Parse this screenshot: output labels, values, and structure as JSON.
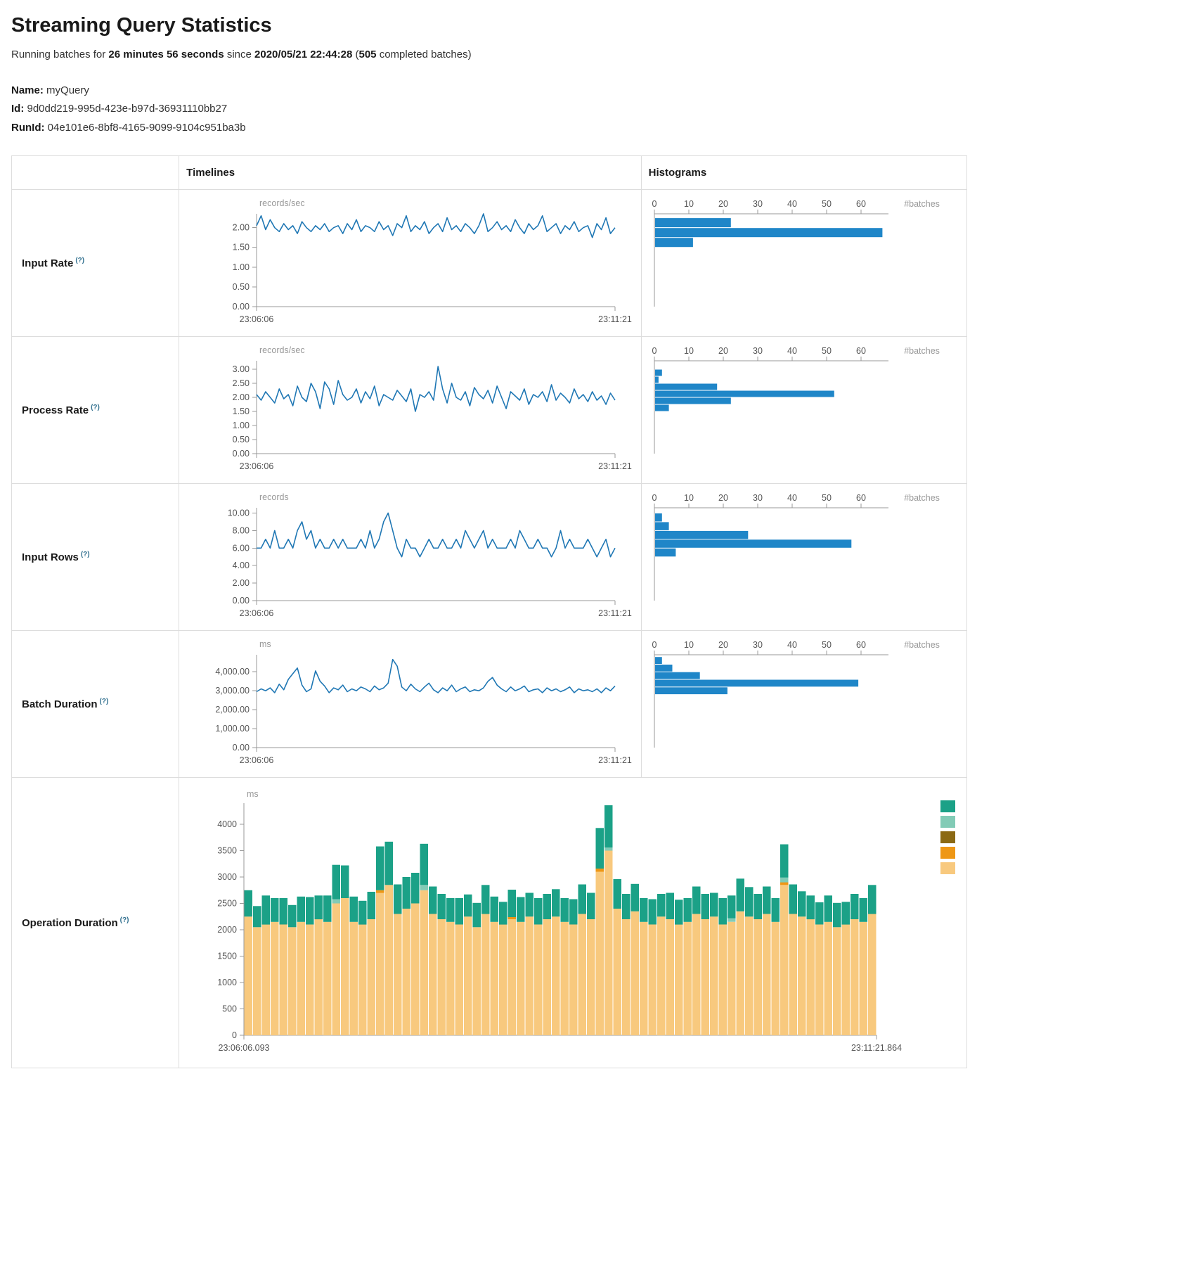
{
  "page": {
    "title": "Streaming Query Statistics",
    "running_prefix": "Running batches for ",
    "duration": "26 minutes 56 seconds",
    "since_infix": " since ",
    "start_time": "2020/05/21 22:44:28",
    "paren_open": " (",
    "completed_batches": "505",
    "completed_suffix": " completed batches)",
    "name_label": "Name:",
    "name_value": "myQuery",
    "id_label": "Id:",
    "id_value": "9d0dd219-995d-423e-b97d-36931110bb27",
    "runid_label": "RunId:",
    "runid_value": "04e101e6-8bf8-4165-9099-9104c951ba3b"
  },
  "table": {
    "timelines_header": "Timelines",
    "histograms_header": "Histograms",
    "help_marker": "(?)"
  },
  "colors": {
    "line": "#1f77b4",
    "histogram_bar": "#1f86c8"
  },
  "chart_data": {
    "rows_order": [
      "input_rate",
      "process_rate",
      "input_rows",
      "batch_duration",
      "operation_duration"
    ],
    "input_rate": {
      "label": "Input Rate",
      "timeline": {
        "type": "line",
        "unit": "records/sec",
        "x_start": "23:06:06",
        "x_end": "23:11:21",
        "ymax": 2.35,
        "y_ticks": [
          {
            "v": 0,
            "t": "0.00"
          },
          {
            "v": 0.5,
            "t": "0.50"
          },
          {
            "v": 1,
            "t": "1.00"
          },
          {
            "v": 1.5,
            "t": "1.50"
          },
          {
            "v": 2,
            "t": "2.00"
          }
        ],
        "values": [
          2.05,
          2.3,
          1.95,
          2.2,
          2.0,
          1.9,
          2.1,
          1.95,
          2.05,
          1.85,
          2.15,
          2.0,
          1.9,
          2.05,
          1.95,
          2.1,
          1.9,
          2.0,
          2.05,
          1.85,
          2.1,
          1.95,
          2.2,
          1.9,
          2.05,
          2.0,
          1.9,
          2.15,
          1.95,
          2.05,
          1.8,
          2.1,
          2.0,
          2.3,
          1.9,
          2.05,
          1.95,
          2.15,
          1.85,
          2.0,
          2.1,
          1.9,
          2.25,
          1.95,
          2.05,
          1.9,
          2.1,
          2.0,
          1.85,
          2.05,
          2.35,
          1.9,
          2.0,
          2.15,
          1.95,
          2.05,
          1.9,
          2.2,
          2.0,
          1.85,
          2.1,
          1.95,
          2.05,
          2.3,
          1.9,
          2.0,
          2.1,
          1.85,
          2.05,
          1.95,
          2.15,
          1.9,
          2.0,
          2.05,
          1.75,
          2.1,
          1.95,
          2.25,
          1.85,
          2.0
        ]
      },
      "histogram": {
        "type": "bar",
        "axis_label": "#batches",
        "xmax": 68,
        "x_ticks": [
          0,
          10,
          20,
          30,
          40,
          50,
          60
        ],
        "bins": [
          {
            "lo": 2.0,
            "hi": 2.25,
            "count": 22
          },
          {
            "lo": 1.75,
            "hi": 2.0,
            "count": 66
          },
          {
            "lo": 1.5,
            "hi": 1.75,
            "count": 11
          }
        ]
      }
    },
    "process_rate": {
      "label": "Process Rate",
      "timeline": {
        "type": "line",
        "unit": "records/sec",
        "x_start": "23:06:06",
        "x_end": "23:11:21",
        "ymax": 3.3,
        "y_ticks": [
          {
            "v": 0,
            "t": "0.00"
          },
          {
            "v": 0.5,
            "t": "0.50"
          },
          {
            "v": 1,
            "t": "1.00"
          },
          {
            "v": 1.5,
            "t": "1.50"
          },
          {
            "v": 2,
            "t": "2.00"
          },
          {
            "v": 2.5,
            "t": "2.50"
          },
          {
            "v": 3,
            "t": "3.00"
          }
        ],
        "values": [
          2.1,
          1.9,
          2.2,
          2.0,
          1.8,
          2.3,
          1.95,
          2.1,
          1.7,
          2.4,
          2.0,
          1.85,
          2.5,
          2.2,
          1.6,
          2.55,
          2.3,
          1.75,
          2.6,
          2.1,
          1.9,
          2.0,
          2.3,
          1.8,
          2.2,
          1.95,
          2.4,
          1.7,
          2.1,
          2.0,
          1.9,
          2.25,
          2.05,
          1.85,
          2.3,
          1.5,
          2.1,
          2.0,
          2.2,
          1.9,
          3.1,
          2.3,
          1.8,
          2.5,
          2.0,
          1.9,
          2.2,
          1.7,
          2.35,
          2.1,
          1.95,
          2.25,
          1.8,
          2.4,
          2.0,
          1.6,
          2.2,
          2.05,
          1.9,
          2.3,
          1.75,
          2.1,
          2.0,
          2.2,
          1.85,
          2.45,
          1.9,
          2.15,
          2.0,
          1.8,
          2.3,
          1.95,
          2.1,
          1.85,
          2.2,
          1.9,
          2.05,
          1.75,
          2.15,
          1.9
        ]
      },
      "histogram": {
        "type": "bar",
        "axis_label": "#batches",
        "xmax": 68,
        "x_ticks": [
          0,
          10,
          20,
          30,
          40,
          50,
          60
        ],
        "bins": [
          {
            "lo": 2.75,
            "hi": 3.0,
            "count": 2
          },
          {
            "lo": 2.5,
            "hi": 2.75,
            "count": 1
          },
          {
            "lo": 2.25,
            "hi": 2.5,
            "count": 18
          },
          {
            "lo": 2.0,
            "hi": 2.25,
            "count": 52
          },
          {
            "lo": 1.75,
            "hi": 2.0,
            "count": 22
          },
          {
            "lo": 1.5,
            "hi": 1.75,
            "count": 4
          }
        ]
      }
    },
    "input_rows": {
      "label": "Input Rows",
      "timeline": {
        "type": "line",
        "unit": "records",
        "x_start": "23:06:06",
        "x_end": "23:11:21",
        "ymax": 10.6,
        "y_ticks": [
          {
            "v": 0,
            "t": "0.00"
          },
          {
            "v": 2,
            "t": "2.00"
          },
          {
            "v": 4,
            "t": "4.00"
          },
          {
            "v": 6,
            "t": "6.00"
          },
          {
            "v": 8,
            "t": "8.00"
          },
          {
            "v": 10,
            "t": "10.00"
          }
        ],
        "values": [
          6,
          6,
          7,
          6,
          8,
          6,
          6,
          7,
          6,
          8,
          9,
          7,
          8,
          6,
          7,
          6,
          6,
          7,
          6,
          7,
          6,
          6,
          6,
          7,
          6,
          8,
          6,
          7,
          9,
          10,
          8,
          6,
          5,
          7,
          6,
          6,
          5,
          6,
          7,
          6,
          6,
          7,
          6,
          6,
          7,
          6,
          8,
          7,
          6,
          7,
          8,
          6,
          7,
          6,
          6,
          6,
          7,
          6,
          8,
          7,
          6,
          6,
          7,
          6,
          6,
          5,
          6,
          8,
          6,
          7,
          6,
          6,
          6,
          7,
          6,
          5,
          6,
          7,
          5,
          6
        ]
      },
      "histogram": {
        "type": "bar",
        "axis_label": "#batches",
        "xmax": 68,
        "x_ticks": [
          0,
          10,
          20,
          30,
          40,
          50,
          60
        ],
        "bins": [
          {
            "lo": 9,
            "hi": 10,
            "count": 2
          },
          {
            "lo": 8,
            "hi": 9,
            "count": 4
          },
          {
            "lo": 7,
            "hi": 8,
            "count": 27
          },
          {
            "lo": 6,
            "hi": 7,
            "count": 57
          },
          {
            "lo": 5,
            "hi": 6,
            "count": 6
          }
        ]
      }
    },
    "batch_duration": {
      "label": "Batch Duration",
      "timeline": {
        "type": "line",
        "unit": "ms",
        "x_start": "23:06:06",
        "x_end": "23:11:21",
        "ymax": 4900,
        "y_ticks": [
          {
            "v": 0,
            "t": "0.00"
          },
          {
            "v": 1000,
            "t": "1,000.00"
          },
          {
            "v": 2000,
            "t": "2,000.00"
          },
          {
            "v": 3000,
            "t": "3,000.00"
          },
          {
            "v": 4000,
            "t": "4,000.00"
          }
        ],
        "values": [
          2950,
          3100,
          3000,
          3150,
          2900,
          3350,
          3050,
          3600,
          3900,
          4200,
          3300,
          2950,
          3100,
          4050,
          3500,
          3250,
          2900,
          3150,
          3050,
          3300,
          2950,
          3100,
          3000,
          3200,
          3100,
          2950,
          3250,
          3050,
          3150,
          3400,
          4650,
          4300,
          3200,
          3000,
          3350,
          3100,
          2950,
          3200,
          3400,
          3050,
          2900,
          3150,
          3000,
          3300,
          2950,
          3100,
          3200,
          2950,
          3050,
          3000,
          3150,
          3500,
          3700,
          3300,
          3100,
          2950,
          3200,
          3000,
          3100,
          3250,
          2950,
          3050,
          3100,
          2900,
          3150,
          3000,
          3100,
          2950,
          3050,
          3200,
          2900,
          3100,
          3000,
          3050,
          2950,
          3100,
          2900,
          3150,
          3000,
          3250
        ]
      },
      "histogram": {
        "type": "bar",
        "axis_label": "#batches",
        "xmax": 68,
        "x_ticks": [
          0,
          10,
          20,
          30,
          40,
          50,
          60
        ],
        "bins": [
          {
            "lo": 4400,
            "hi": 4800,
            "count": 2
          },
          {
            "lo": 4000,
            "hi": 4400,
            "count": 5
          },
          {
            "lo": 3600,
            "hi": 4000,
            "count": 13
          },
          {
            "lo": 3200,
            "hi": 3600,
            "count": 59
          },
          {
            "lo": 2800,
            "hi": 3200,
            "count": 21
          }
        ]
      }
    },
    "operation_duration": {
      "label": "Operation Duration",
      "timeline": {
        "type": "stacked-bar",
        "unit": "ms",
        "x_start": "23:06:06.093",
        "x_end": "23:11:21.864",
        "ymax": 4400,
        "y_ticks": [
          {
            "v": 0,
            "t": "0"
          },
          {
            "v": 500,
            "t": "500"
          },
          {
            "v": 1000,
            "t": "1000"
          },
          {
            "v": 1500,
            "t": "1500"
          },
          {
            "v": 2000,
            "t": "2000"
          },
          {
            "v": 2500,
            "t": "2500"
          },
          {
            "v": 3000,
            "t": "3000"
          },
          {
            "v": 3500,
            "t": "3500"
          },
          {
            "v": 4000,
            "t": "4000"
          }
        ],
        "series": [
          {
            "name": "light-orange",
            "color": "#f8c97e",
            "values": [
              2250,
              2050,
              2100,
              2150,
              2100,
              2050,
              2150,
              2100,
              2200,
              2150,
              2500,
              2600,
              2150,
              2100,
              2200,
              2700,
              2850,
              2300,
              2400,
              2500,
              2750,
              2300,
              2200,
              2150,
              2100,
              2250,
              2050,
              2300,
              2150,
              2100,
              2200,
              2150,
              2250,
              2100,
              2200,
              2250,
              2150,
              2100,
              2300,
              2200,
              3100,
              3500,
              2400,
              2200,
              2350,
              2150,
              2100,
              2250,
              2200,
              2100,
              2150,
              2300,
              2200,
              2250,
              2100,
              2150,
              2350,
              2250,
              2200,
              2300,
              2150,
              2850,
              2300,
              2250,
              2200,
              2100,
              2150,
              2050,
              2100,
              2200,
              2150,
              2300
            ]
          },
          {
            "name": "orange",
            "color": "#ee9715",
            "values": [
              0,
              0,
              0,
              0,
              0,
              0,
              0,
              0,
              0,
              0,
              0,
              0,
              0,
              0,
              0,
              50,
              0,
              0,
              0,
              0,
              0,
              0,
              0,
              0,
              0,
              0,
              0,
              0,
              0,
              0,
              40,
              0,
              0,
              0,
              0,
              0,
              0,
              0,
              0,
              0,
              60,
              0,
              0,
              0,
              0,
              0,
              0,
              0,
              0,
              0,
              0,
              0,
              0,
              0,
              0,
              0,
              0,
              0,
              0,
              0,
              0,
              50,
              0,
              0,
              0,
              0,
              0,
              0,
              0,
              0,
              0,
              0
            ]
          },
          {
            "name": "light-teal",
            "color": "#82cbb6",
            "values": [
              0,
              0,
              0,
              0,
              0,
              0,
              0,
              0,
              0,
              0,
              80,
              0,
              0,
              0,
              0,
              0,
              0,
              0,
              0,
              0,
              100,
              0,
              0,
              0,
              0,
              0,
              0,
              0,
              0,
              0,
              0,
              0,
              0,
              0,
              0,
              0,
              0,
              0,
              0,
              0,
              0,
              60,
              0,
              0,
              0,
              0,
              0,
              0,
              0,
              0,
              0,
              0,
              0,
              0,
              0,
              70,
              0,
              0,
              0,
              0,
              0,
              90,
              0,
              0,
              0,
              0,
              0,
              0,
              0,
              0,
              0,
              0
            ]
          },
          {
            "name": "teal",
            "color": "#1ba187",
            "values": [
              500,
              400,
              550,
              450,
              500,
              420,
              480,
              520,
              450,
              500,
              650,
              620,
              480,
              450,
              520,
              830,
              820,
              560,
              600,
              580,
              780,
              520,
              480,
              450,
              500,
              420,
              460,
              550,
              480,
              430,
              520,
              470,
              450,
              500,
              480,
              520,
              450,
              480,
              560,
              500,
              770,
              800,
              560,
              480,
              520,
              450,
              480,
              430,
              500,
              470,
              450,
              520,
              480,
              450,
              500,
              430,
              620,
              560,
              480,
              520,
              450,
              630,
              560,
              480,
              450,
              420,
              500,
              460,
              430,
              480,
              450,
              550
            ]
          }
        ],
        "legend_colors": [
          "#1ba187",
          "#82cbb6",
          "#8b6914",
          "#ee9715",
          "#f8c97e"
        ]
      }
    }
  }
}
